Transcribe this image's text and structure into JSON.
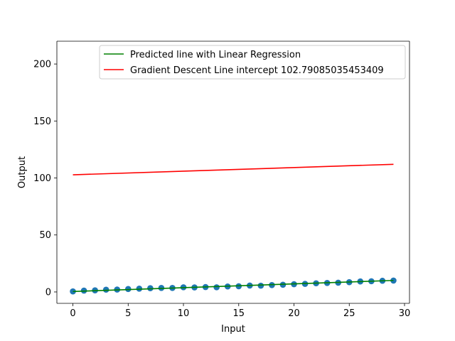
{
  "chart_data": {
    "type": "scatter",
    "xlabel": "Input",
    "ylabel": "Output",
    "xlim": [
      -1.45,
      30.45
    ],
    "ylim": [
      -10,
      220
    ],
    "xticks": [
      0,
      5,
      10,
      15,
      20,
      25,
      30
    ],
    "yticks": [
      0,
      50,
      100,
      150,
      200
    ],
    "grid": false,
    "legend_position": "top-center",
    "scatter": {
      "color": "#1f77b4",
      "x": [
        0,
        1,
        2,
        3,
        4,
        5,
        6,
        7,
        8,
        9,
        10,
        11,
        12,
        13,
        14,
        15,
        16,
        17,
        18,
        19,
        20,
        21,
        22,
        23,
        24,
        25,
        26,
        27,
        28,
        29
      ],
      "y": [
        0.5,
        1.2,
        1.4,
        2.0,
        2.1,
        2.6,
        2.9,
        3.3,
        3.5,
        3.5,
        4.1,
        4.0,
        4.3,
        4.1,
        4.8,
        5.0,
        5.6,
        5.5,
        6.0,
        6.3,
        6.8,
        7.1,
        7.6,
        7.9,
        8.1,
        8.6,
        9.2,
        9.4,
        9.8,
        10.0
      ]
    },
    "series": [
      {
        "name": "Predicted line with Linear Regression",
        "color": "#008000",
        "x": [
          0,
          29
        ],
        "y": [
          0.4,
          10.1
        ]
      },
      {
        "name": "Gradient Descent Line intercept 102.79085035453409",
        "color": "#ff0000",
        "x": [
          0,
          29
        ],
        "y": [
          102.79,
          112.0
        ]
      }
    ]
  }
}
